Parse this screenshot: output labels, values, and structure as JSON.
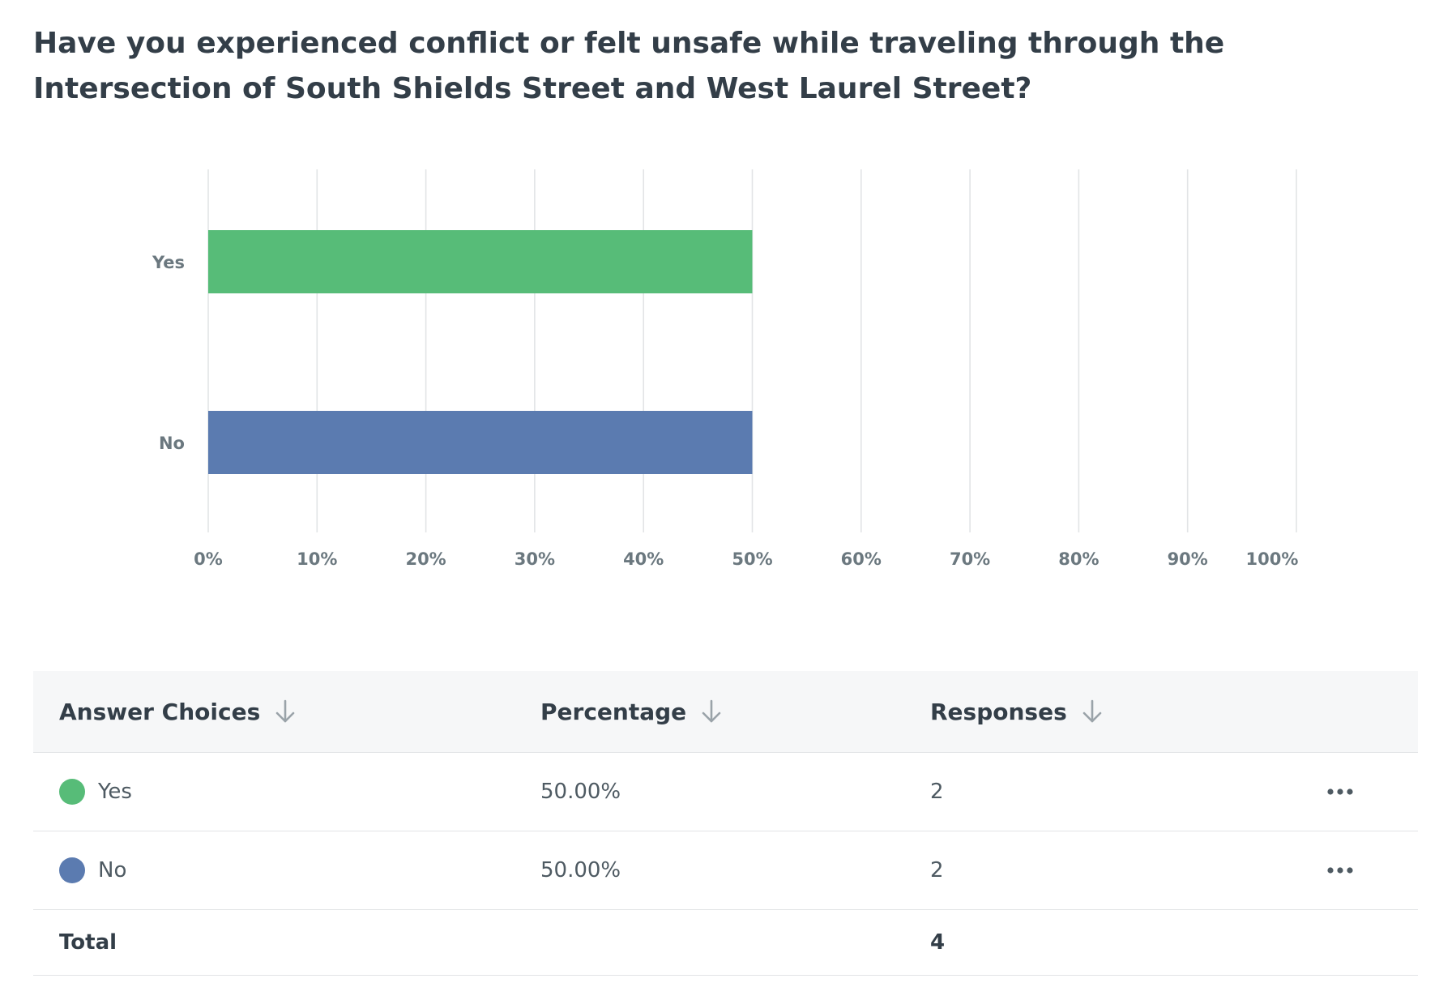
{
  "question": {
    "title": "Have you experienced conflict or felt unsafe while traveling through the Intersection of South Shields Street and West Laurel Street?"
  },
  "chart_data": {
    "type": "bar",
    "orientation": "horizontal",
    "categories": [
      "Yes",
      "No"
    ],
    "values": [
      50,
      50
    ],
    "colors": [
      "#57bc78",
      "#5b7bb0"
    ],
    "x_tick_labels": [
      "0%",
      "10%",
      "20%",
      "30%",
      "40%",
      "50%",
      "60%",
      "70%",
      "80%",
      "90%",
      "100%"
    ],
    "xlim": [
      0,
      100
    ],
    "x_unit": "%",
    "grid": true,
    "legend": "none"
  },
  "table": {
    "headers": {
      "answer": "Answer Choices",
      "percentage": "Percentage",
      "responses": "Responses"
    },
    "rows": [
      {
        "answer": "Yes",
        "percentage": "50.00%",
        "responses": "2",
        "color": "#57bc78"
      },
      {
        "answer": "No",
        "percentage": "50.00%",
        "responses": "2",
        "color": "#5b7bb0"
      }
    ],
    "total": {
      "label": "Total",
      "responses": "4"
    }
  },
  "icons": {
    "sort": "arrow-down-icon",
    "row_menu": "more-options-icon"
  }
}
